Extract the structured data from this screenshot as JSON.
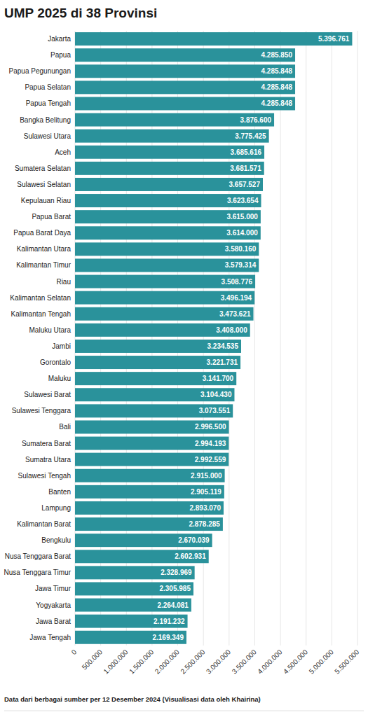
{
  "chart_data": {
    "type": "bar",
    "orientation": "horizontal",
    "title": "UMP 2025 di 38 Provinsi",
    "annotations": [
      "Data dari berbagai sumber per 12 Desember 2024 (Visualisasi data oleh Khairina)"
    ],
    "categories": [
      "Jakarta",
      "Papua",
      "Papua Pegunungan",
      "Papua Selatan",
      "Papua Tengah",
      "Bangka Belitung",
      "Sulawesi Utara",
      "Aceh",
      "Sumatera Selatan",
      "Sulawesi Selatan",
      "Kepulauan Riau",
      "Papua Barat",
      "Papua Barat Daya",
      "Kalimantan Utara",
      "Kalimantan Timur",
      "Riau",
      "Kalimantan Selatan",
      "Kalimantan Tengah",
      "Maluku Utara",
      "Jambi",
      "Gorontalo",
      "Maluku",
      "Sulawesi Barat",
      "Sulawesi Tenggara",
      "Bali",
      "Sumatera Barat",
      "Sumatra Utara",
      "Sulawesi Tengah",
      "Banten",
      "Lampung",
      "Kalimantan Barat",
      "Bengkulu",
      "Nusa Tenggara Barat",
      "Nusa Tenggara Timur",
      "Jawa Timur",
      "Yogyakarta",
      "Jawa Barat",
      "Jawa Tengah"
    ],
    "values": [
      5396761,
      4285850,
      4285848,
      4285848,
      4285848,
      3876600,
      3775425,
      3685616,
      3681571,
      3657527,
      3623654,
      3615000,
      3614000,
      3580160,
      3579314,
      3508776,
      3496194,
      3473621,
      3408000,
      3234535,
      3221731,
      3141700,
      3104430,
      3073551,
      2996500,
      2994193,
      2992559,
      2915000,
      2905119,
      2893070,
      2878285,
      2670039,
      2602931,
      2328969,
      2305985,
      2264081,
      2191232,
      2169349
    ],
    "value_labels": [
      "5.396.761",
      "4.285.850",
      "4.285.848",
      "4.285.848",
      "4.285.848",
      "3.876.600",
      "3.775.425",
      "3.685.616",
      "3.681.571",
      "3.657.527",
      "3.623.654",
      "3.615.000",
      "3.614.000",
      "3.580.160",
      "3.579.314",
      "3.508.776",
      "3.496.194",
      "3.473.621",
      "3.408.000",
      "3.234.535",
      "3.221.731",
      "3.141.700",
      "3.104.430",
      "3.073.551",
      "2.996.500",
      "2.994.193",
      "2.992.559",
      "2.915.000",
      "2.905.119",
      "2.893.070",
      "2.878.285",
      "2.670.039",
      "2.602.931",
      "2.328.969",
      "2.305.985",
      "2.264.081",
      "2.191.232",
      "2.169.349"
    ],
    "color": "#2a929b",
    "xlim": [
      0,
      5500000
    ],
    "xticks": [
      0,
      {
        "value": 500000,
        "label": "500.000"
      },
      {
        "value": 1000000,
        "label": "1.000.000"
      },
      {
        "value": 1500000,
        "label": "1.500.000"
      },
      {
        "value": 2000000,
        "label": "2.000.000"
      },
      {
        "value": 2500000,
        "label": "2.500.000"
      },
      {
        "value": 3000000,
        "label": "3.000.000"
      },
      {
        "value": 3500000,
        "label": "3.500.000"
      },
      {
        "value": 4000000,
        "label": "4.000.000"
      },
      {
        "value": 4500000,
        "label": "4.500.000"
      },
      {
        "value": 5000000,
        "label": "5.000.000"
      },
      {
        "value": 5500000,
        "label": "5.500.000"
      }
    ],
    "grid": true,
    "data_labels": true
  }
}
